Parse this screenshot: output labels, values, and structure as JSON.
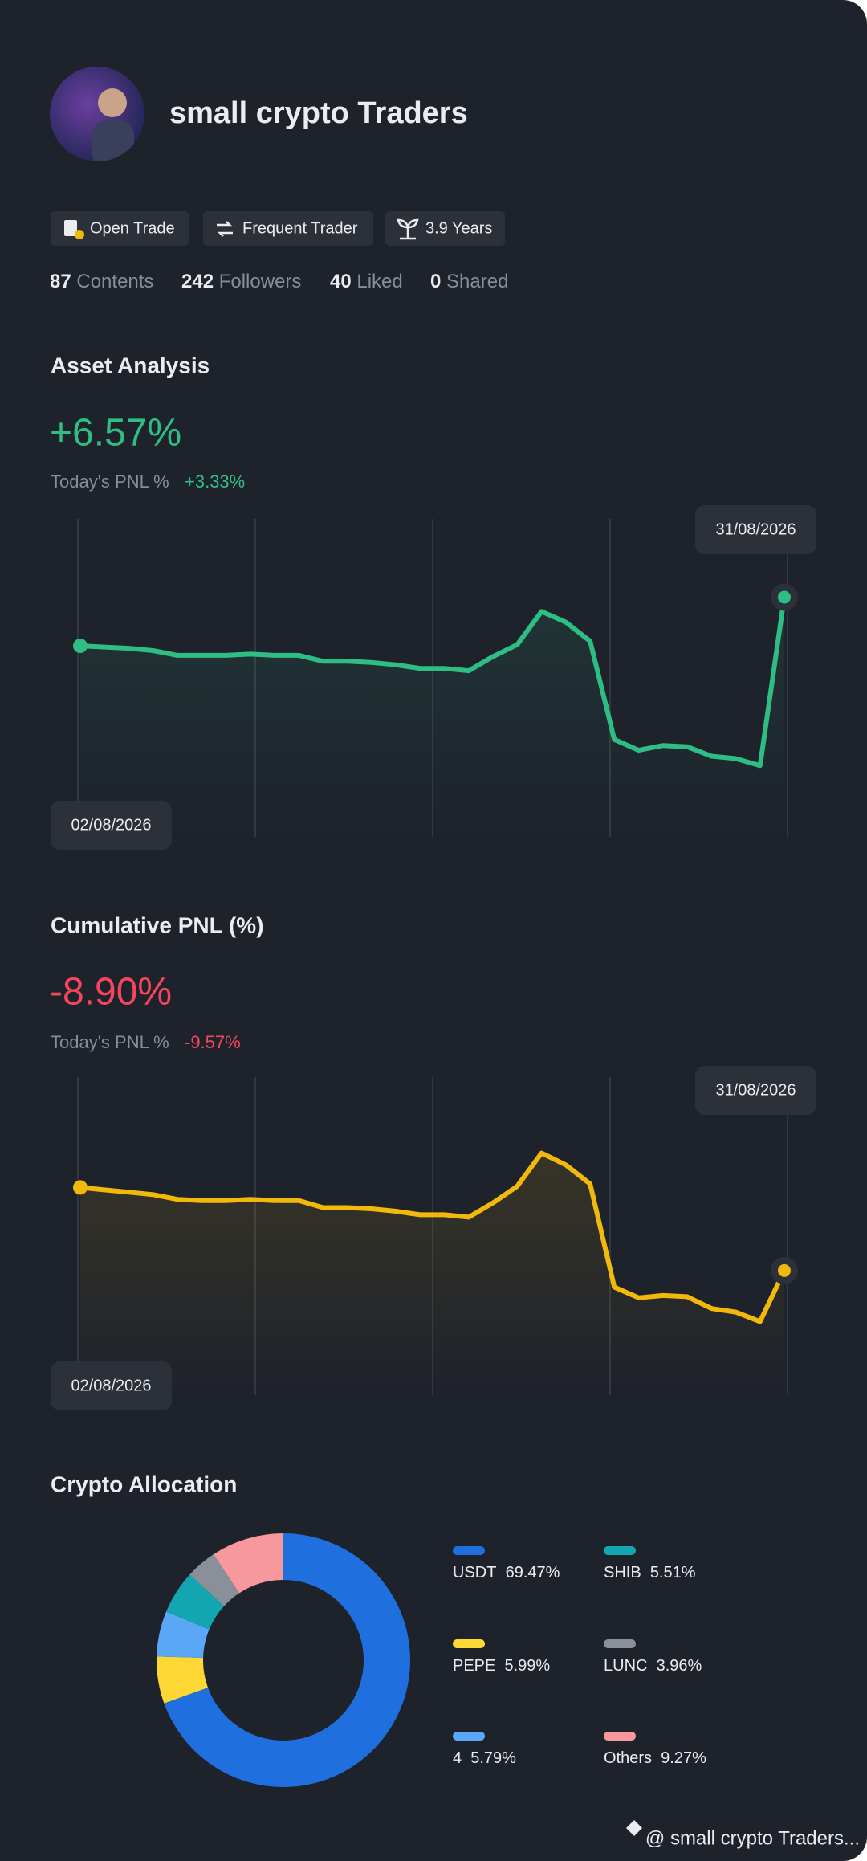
{
  "profile": {
    "name": "small crypto Traders",
    "badges": [
      "Open Trade",
      "Frequent Trader",
      "3.9 Years"
    ],
    "stats": [
      {
        "value": 87,
        "label": "Contents"
      },
      {
        "value": 242,
        "label": "Followers"
      },
      {
        "value": 40,
        "label": "Liked"
      },
      {
        "value": 0,
        "label": "Shared"
      }
    ]
  },
  "chart_data": [
    {
      "type": "line",
      "title": "Asset Analysis",
      "headline": "+6.57%",
      "today_label": "Today's PNL %",
      "today_value": "+3.33%",
      "start_label": "02/08/2026",
      "end_label": "31/08/2026",
      "color": "#2ebd85",
      "values": [
        161,
        160,
        159,
        157,
        153,
        153,
        153,
        154,
        153,
        153,
        148,
        148,
        147,
        145,
        142,
        142,
        140,
        152,
        162,
        190,
        181,
        165,
        82,
        73,
        77,
        76,
        68,
        66,
        60,
        202
      ],
      "ylim": [
        0,
        268
      ]
    },
    {
      "type": "line",
      "title": "Cumulative PNL (%)",
      "headline": "-8.90%",
      "today_label": "Today's PNL %",
      "today_value": "-9.57%",
      "start_label": "02/08/2026",
      "end_label": "31/08/2026",
      "color": "#f0b90b",
      "values": [
        175,
        173,
        171,
        169,
        165,
        164,
        164,
        165,
        164,
        164,
        158,
        158,
        157,
        155,
        152,
        152,
        150,
        162,
        176,
        204,
        194,
        178,
        91,
        82,
        84,
        83,
        73,
        70,
        62,
        105
      ],
      "ylim": [
        0,
        268
      ]
    },
    {
      "type": "pie",
      "title": "Crypto Allocation",
      "categories": [
        "USDT",
        "PEPE",
        "4",
        "SHIB",
        "LUNC",
        "Others"
      ],
      "values": [
        69.47,
        5.99,
        5.79,
        5.51,
        3.96,
        9.27
      ],
      "value_labels": [
        "69.47%",
        "5.99%",
        "5.79%",
        "5.51%",
        "3.96%",
        "9.27%"
      ],
      "colors": [
        "#1f6fde",
        "#fdd835",
        "#5aa7f5",
        "#12a6b0",
        "#8a9099",
        "#f6989c"
      ]
    }
  ],
  "footer": "@ small crypto Traders..."
}
